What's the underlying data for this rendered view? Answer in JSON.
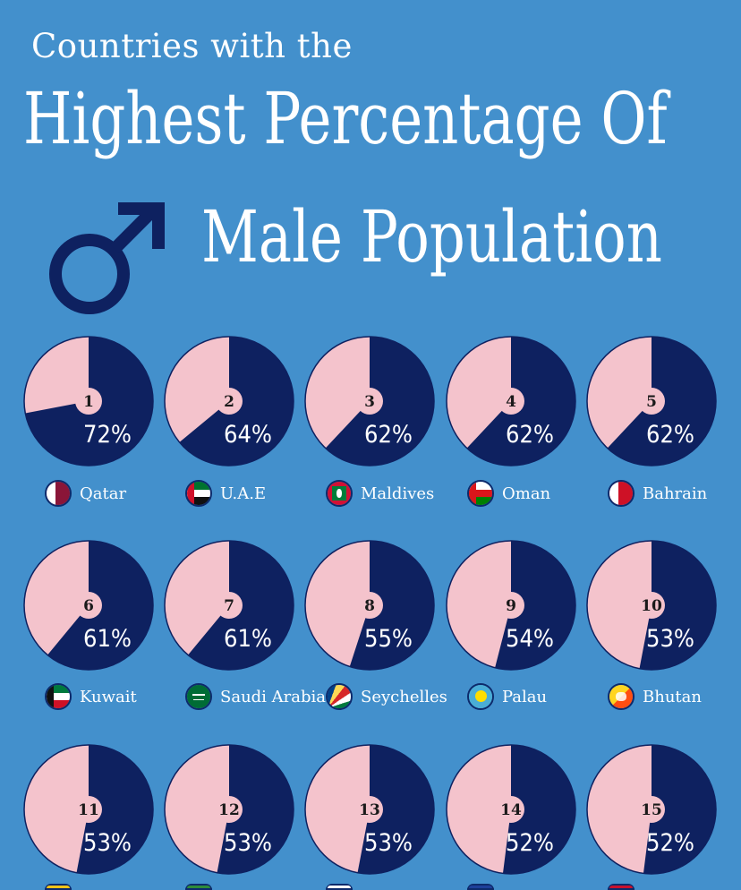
{
  "title": {
    "line1": "Countries with the",
    "line2": "Highest Percentage Of",
    "line3": "Male Population"
  },
  "icon": "male-symbol-icon",
  "colors": {
    "background": "#4390cc",
    "male": "#0e2160",
    "female": "#f4c3cc",
    "text": "#ffffff"
  },
  "chart_data": {
    "type": "pie",
    "title": "Countries with the Highest Percentage Of Male Population",
    "series": [
      {
        "rank": "1",
        "country": "Qatar",
        "male_pct": 72,
        "label": "72%",
        "flag": "qatar-flag-icon"
      },
      {
        "rank": "2",
        "country": "U.A.E",
        "male_pct": 64,
        "label": "64%",
        "flag": "uae-flag-icon"
      },
      {
        "rank": "3",
        "country": "Maldives",
        "male_pct": 62,
        "label": "62%",
        "flag": "maldives-flag-icon"
      },
      {
        "rank": "4",
        "country": "Oman",
        "male_pct": 62,
        "label": "62%",
        "flag": "oman-flag-icon"
      },
      {
        "rank": "5",
        "country": "Bahrain",
        "male_pct": 62,
        "label": "62%",
        "flag": "bahrain-flag-icon"
      },
      {
        "rank": "6",
        "country": "Kuwait",
        "male_pct": 61,
        "label": "61%",
        "flag": "kuwait-flag-icon"
      },
      {
        "rank": "7",
        "country": "Saudi Arabia",
        "male_pct": 61,
        "label": "61%",
        "flag": "saudi-arabia-flag-icon"
      },
      {
        "rank": "8",
        "country": "Seychelles",
        "male_pct": 55,
        "label": "55%",
        "flag": "seychelles-flag-icon"
      },
      {
        "rank": "9",
        "country": "Palau",
        "male_pct": 54,
        "label": "54%",
        "flag": "palau-flag-icon"
      },
      {
        "rank": "10",
        "country": "Bhutan",
        "male_pct": 53,
        "label": "53%",
        "flag": "bhutan-flag-icon"
      },
      {
        "rank": "11",
        "country": "",
        "male_pct": 53,
        "label": "53%",
        "flag": "yellow-flag-icon"
      },
      {
        "rank": "12",
        "country": "",
        "male_pct": 53,
        "label": "53%",
        "flag": "green-flag-icon"
      },
      {
        "rank": "13",
        "country": "",
        "male_pct": 53,
        "label": "53%",
        "flag": "white-flag-icon"
      },
      {
        "rank": "14",
        "country": "",
        "male_pct": 52,
        "label": "52%",
        "flag": "blue-flag-icon"
      },
      {
        "rank": "15",
        "country": "",
        "male_pct": 52,
        "label": "52%",
        "flag": "red-flag-icon"
      }
    ]
  }
}
